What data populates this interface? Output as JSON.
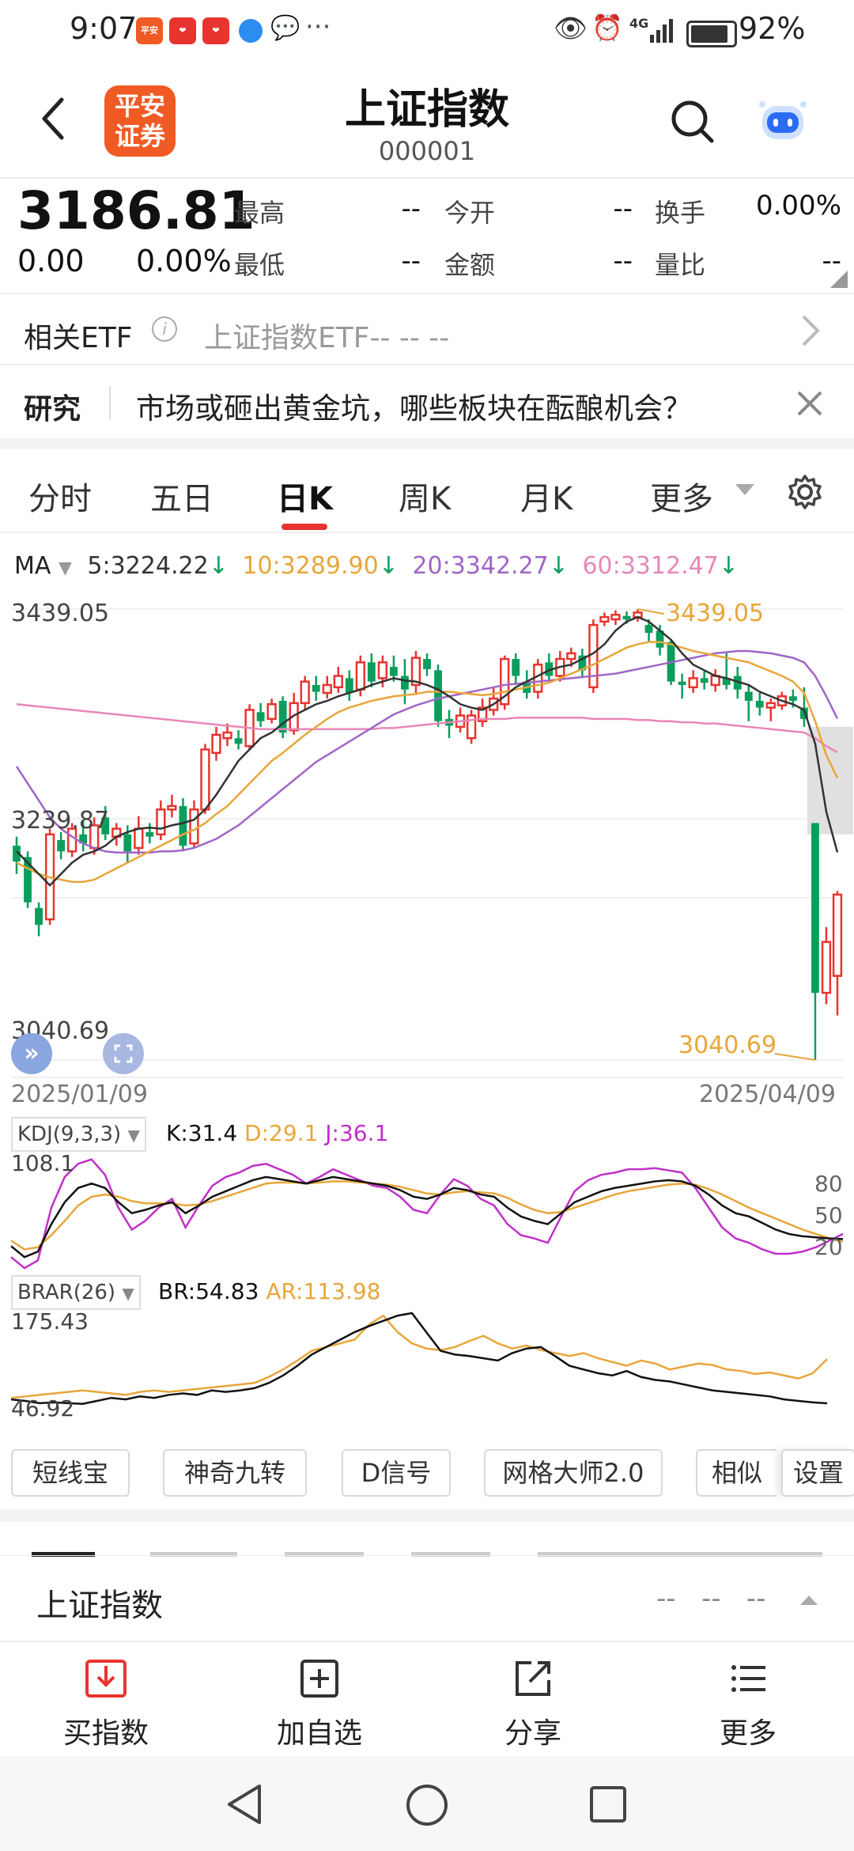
{
  "status_bar": {
    "time": "9:07",
    "network": "4G",
    "battery": "92%",
    "app_icons": [
      {
        "name": "ping-an-app-icon",
        "text": "平安证券",
        "color": "#f05a24"
      },
      {
        "name": "red-app-icon-1",
        "text": "",
        "color": "#e8342f"
      },
      {
        "name": "red-app-icon-2",
        "text": "",
        "color": "#e8342f"
      }
    ],
    "more_dots": "···"
  },
  "header": {
    "title": "上证指数",
    "code": "000001",
    "logo_text": "平安证券",
    "back_icon": "chevron-left-icon",
    "search_icon": "search-icon",
    "assistant_icon": "robot-icon"
  },
  "quote": {
    "price": "3186.81",
    "change": "0.00",
    "change_pct": "0.00%",
    "items": [
      {
        "label": "最高",
        "value": "--"
      },
      {
        "label": "今开",
        "value": "--"
      },
      {
        "label": "换手",
        "value": "0.00%"
      },
      {
        "label": "最低",
        "value": "--"
      },
      {
        "label": "金额",
        "value": "--"
      },
      {
        "label": "量比",
        "value": "--"
      }
    ]
  },
  "etf": {
    "label": "相关ETF",
    "value": "上证指数ETF-- -- --"
  },
  "research": {
    "tag": "研究",
    "text": "市场或砸出黄金坑，哪些板块在酝酿机会？"
  },
  "tabs": [
    {
      "label": "分时"
    },
    {
      "label": "五日"
    },
    {
      "label": "日K",
      "active": true
    },
    {
      "label": "周K"
    },
    {
      "label": "月K"
    },
    {
      "label": "更多"
    }
  ],
  "ma": {
    "label": "MA",
    "items": [
      {
        "text": "5:3224.22",
        "color": "#333333"
      },
      {
        "text": "10:3289.90",
        "color": "#e8a63a"
      },
      {
        "text": "20:3342.27",
        "color": "#a066c8"
      },
      {
        "text": "60:3312.47",
        "color": "#e887b8"
      }
    ]
  },
  "kline_labels": {
    "top": "3439.05",
    "mid": "3239.87",
    "low": "3040.69",
    "high_marker": "3439.05",
    "low_marker": "3040.69",
    "date_start": "2025/01/09",
    "date_end": "2025/04/09"
  },
  "colors": {
    "up": "#e8342f",
    "down": "#0a9e5c",
    "ma5": "#333333",
    "ma10": "#e8a63a",
    "ma20": "#a066c8",
    "ma60": "#e887b8",
    "accent": "#e8342f"
  },
  "kdj": {
    "label": "KDJ(9,3,3)",
    "k": "K:31.4",
    "d": "D:29.1",
    "j": "J:36.1",
    "max": "108.1",
    "levels": [
      "80",
      "50",
      "20"
    ]
  },
  "brar": {
    "label": "BRAR(26)",
    "br": "BR:54.83",
    "ar": "AR:113.98",
    "max": "175.43",
    "min": "46.92"
  },
  "tools": [
    {
      "label": "短线宝"
    },
    {
      "label": "神奇九转"
    },
    {
      "label": "D信号"
    },
    {
      "label": "网格大师2.0"
    },
    {
      "label": "相似"
    },
    {
      "label": "设置"
    }
  ],
  "section": {
    "title": "上证指数",
    "values": "--   --   --"
  },
  "bottom_actions": [
    {
      "label": "买指数",
      "icon": "download-box-icon"
    },
    {
      "label": "加自选",
      "icon": "plus-box-icon"
    },
    {
      "label": "分享",
      "icon": "share-icon"
    },
    {
      "label": "更多",
      "icon": "list-icon"
    }
  ],
  "chart_data": {
    "type": "candlestick",
    "x_range": [
      "2025/01/09",
      "2025/04/09"
    ],
    "ylim": [
      3040.69,
      3439.05
    ],
    "candles": [
      {
        "o": 3230,
        "c": 3216,
        "h": 3238,
        "l": 3205
      },
      {
        "o": 3220,
        "c": 3180,
        "h": 3225,
        "l": 3175
      },
      {
        "o": 3175,
        "c": 3160,
        "h": 3180,
        "l": 3150
      },
      {
        "o": 3165,
        "c": 3240,
        "h": 3245,
        "l": 3160
      },
      {
        "o": 3235,
        "c": 3225,
        "h": 3242,
        "l": 3218
      },
      {
        "o": 3225,
        "c": 3245,
        "h": 3250,
        "l": 3220
      },
      {
        "o": 3240,
        "c": 3232,
        "h": 3252,
        "l": 3225
      },
      {
        "o": 3228,
        "c": 3248,
        "h": 3255,
        "l": 3222
      },
      {
        "o": 3255,
        "c": 3240,
        "h": 3265,
        "l": 3235
      },
      {
        "o": 3238,
        "c": 3245,
        "h": 3250,
        "l": 3230
      },
      {
        "o": 3240,
        "c": 3225,
        "h": 3248,
        "l": 3215
      },
      {
        "o": 3228,
        "c": 3245,
        "h": 3256,
        "l": 3222
      },
      {
        "o": 3242,
        "c": 3238,
        "h": 3250,
        "l": 3232
      },
      {
        "o": 3240,
        "c": 3262,
        "h": 3270,
        "l": 3235
      },
      {
        "o": 3262,
        "c": 3265,
        "h": 3275,
        "l": 3255
      },
      {
        "o": 3265,
        "c": 3230,
        "h": 3272,
        "l": 3225
      },
      {
        "o": 3232,
        "c": 3262,
        "h": 3270,
        "l": 3228
      },
      {
        "o": 3262,
        "c": 3315,
        "h": 3320,
        "l": 3258
      },
      {
        "o": 3312,
        "c": 3328,
        "h": 3335,
        "l": 3305
      },
      {
        "o": 3325,
        "c": 3330,
        "h": 3338,
        "l": 3318
      },
      {
        "o": 3325,
        "c": 3320,
        "h": 3332,
        "l": 3315
      },
      {
        "o": 3318,
        "c": 3350,
        "h": 3355,
        "l": 3315
      },
      {
        "o": 3348,
        "c": 3340,
        "h": 3356,
        "l": 3335
      },
      {
        "o": 3342,
        "c": 3355,
        "h": 3360,
        "l": 3338
      },
      {
        "o": 3358,
        "c": 3330,
        "h": 3362,
        "l": 3325
      },
      {
        "o": 3332,
        "c": 3356,
        "h": 3365,
        "l": 3328
      },
      {
        "o": 3356,
        "c": 3375,
        "h": 3380,
        "l": 3350
      },
      {
        "o": 3372,
        "c": 3366,
        "h": 3380,
        "l": 3358
      },
      {
        "o": 3365,
        "c": 3372,
        "h": 3380,
        "l": 3360
      },
      {
        "o": 3370,
        "c": 3380,
        "h": 3388,
        "l": 3365
      },
      {
        "o": 3378,
        "c": 3365,
        "h": 3385,
        "l": 3358
      },
      {
        "o": 3368,
        "c": 3392,
        "h": 3398,
        "l": 3362
      },
      {
        "o": 3392,
        "c": 3375,
        "h": 3400,
        "l": 3370
      },
      {
        "o": 3378,
        "c": 3392,
        "h": 3398,
        "l": 3370
      },
      {
        "o": 3388,
        "c": 3380,
        "h": 3398,
        "l": 3375
      },
      {
        "o": 3380,
        "c": 3368,
        "h": 3395,
        "l": 3355
      },
      {
        "o": 3372,
        "c": 3396,
        "h": 3402,
        "l": 3365
      },
      {
        "o": 3395,
        "c": 3386,
        "h": 3400,
        "l": 3380
      },
      {
        "o": 3385,
        "c": 3340,
        "h": 3390,
        "l": 3335
      },
      {
        "o": 3342,
        "c": 3336,
        "h": 3350,
        "l": 3325
      },
      {
        "o": 3335,
        "c": 3345,
        "h": 3352,
        "l": 3330
      },
      {
        "o": 3325,
        "c": 3345,
        "h": 3350,
        "l": 3320
      },
      {
        "o": 3340,
        "c": 3352,
        "h": 3360,
        "l": 3335
      },
      {
        "o": 3350,
        "c": 3360,
        "h": 3370,
        "l": 3345
      },
      {
        "o": 3355,
        "c": 3395,
        "h": 3398,
        "l": 3350
      },
      {
        "o": 3395,
        "c": 3380,
        "h": 3400,
        "l": 3372
      },
      {
        "o": 3375,
        "c": 3365,
        "h": 3385,
        "l": 3360
      },
      {
        "o": 3366,
        "c": 3390,
        "h": 3395,
        "l": 3360
      },
      {
        "o": 3392,
        "c": 3380,
        "h": 3400,
        "l": 3375
      },
      {
        "o": 3380,
        "c": 3395,
        "h": 3402,
        "l": 3375
      },
      {
        "o": 3395,
        "c": 3400,
        "h": 3405,
        "l": 3388
      },
      {
        "o": 3398,
        "c": 3385,
        "h": 3404,
        "l": 3378
      },
      {
        "o": 3370,
        "c": 3425,
        "h": 3430,
        "l": 3365
      },
      {
        "o": 3428,
        "c": 3432,
        "h": 3436,
        "l": 3424
      },
      {
        "o": 3430,
        "c": 3434,
        "h": 3438,
        "l": 3425
      },
      {
        "o": 3433,
        "c": 3430,
        "h": 3437,
        "l": 3426
      },
      {
        "o": 3432,
        "c": 3436,
        "h": 3439.05,
        "l": 3428
      },
      {
        "o": 3425,
        "c": 3418,
        "h": 3430,
        "l": 3410
      },
      {
        "o": 3420,
        "c": 3405,
        "h": 3425,
        "l": 3398
      },
      {
        "o": 3410,
        "c": 3375,
        "h": 3412,
        "l": 3372
      },
      {
        "o": 3375,
        "c": 3372,
        "h": 3382,
        "l": 3360
      },
      {
        "o": 3370,
        "c": 3378,
        "h": 3385,
        "l": 3365
      },
      {
        "o": 3378,
        "c": 3374,
        "h": 3384,
        "l": 3368
      },
      {
        "o": 3372,
        "c": 3380,
        "h": 3386,
        "l": 3366
      },
      {
        "o": 3378,
        "c": 3372,
        "h": 3400,
        "l": 3368
      },
      {
        "o": 3380,
        "c": 3368,
        "h": 3388,
        "l": 3360
      },
      {
        "o": 3366,
        "c": 3358,
        "h": 3372,
        "l": 3340
      },
      {
        "o": 3358,
        "c": 3352,
        "h": 3365,
        "l": 3345
      },
      {
        "o": 3352,
        "c": 3356,
        "h": 3360,
        "l": 3340
      },
      {
        "o": 3354,
        "c": 3362,
        "h": 3366,
        "l": 3350
      },
      {
        "o": 3362,
        "c": 3358,
        "h": 3368,
        "l": 3352
      },
      {
        "o": 3352,
        "c": 3342,
        "h": 3370,
        "l": 3335
      },
      {
        "o": 3250,
        "c": 3100,
        "h": 3250,
        "l": 3040.69
      },
      {
        "o": 3100,
        "c": 3145,
        "h": 3158,
        "l": 3090
      },
      {
        "o": 3115,
        "c": 3186.81,
        "h": 3190,
        "l": 3080
      }
    ],
    "ma5": [
      3225,
      3215,
      3205,
      3195,
      3205,
      3215,
      3222,
      3225,
      3230,
      3238,
      3242,
      3245,
      3246,
      3245,
      3248,
      3250,
      3253,
      3262,
      3275,
      3290,
      3305,
      3315,
      3325,
      3330,
      3338,
      3345,
      3350,
      3355,
      3358,
      3362,
      3365,
      3368,
      3372,
      3375,
      3378,
      3376,
      3375,
      3372,
      3368,
      3362,
      3355,
      3352,
      3350,
      3355,
      3362,
      3370,
      3375,
      3380,
      3385,
      3388,
      3390,
      3395,
      3400,
      3408,
      3420,
      3428,
      3432,
      3428,
      3420,
      3412,
      3400,
      3390,
      3385,
      3380,
      3378,
      3375,
      3372,
      3366,
      3362,
      3358,
      3355,
      3350,
      3320,
      3260,
      3224.22
    ],
    "ma10": [
      3215,
      3210,
      3205,
      3202,
      3200,
      3198,
      3198,
      3200,
      3205,
      3210,
      3215,
      3220,
      3225,
      3230,
      3235,
      3240,
      3244,
      3250,
      3258,
      3265,
      3275,
      3285,
      3295,
      3305,
      3312,
      3320,
      3328,
      3335,
      3342,
      3348,
      3352,
      3355,
      3358,
      3360,
      3362,
      3363,
      3364,
      3366,
      3366,
      3366,
      3365,
      3364,
      3363,
      3364,
      3366,
      3368,
      3370,
      3372,
      3374,
      3378,
      3382,
      3386,
      3390,
      3395,
      3400,
      3405,
      3408,
      3410,
      3410,
      3408,
      3405,
      3402,
      3400,
      3398,
      3396,
      3394,
      3392,
      3388,
      3384,
      3380,
      3375,
      3365,
      3340,
      3310,
      3289.9
    ],
    "ma20": [
      3300,
      3285,
      3270,
      3255,
      3245,
      3238,
      3232,
      3228,
      3225,
      3224,
      3224,
      3224,
      3224,
      3225,
      3225,
      3226,
      3228,
      3232,
      3236,
      3242,
      3248,
      3256,
      3264,
      3272,
      3280,
      3288,
      3296,
      3304,
      3310,
      3316,
      3322,
      3328,
      3334,
      3340,
      3346,
      3350,
      3354,
      3357,
      3360,
      3362,
      3364,
      3366,
      3368,
      3370,
      3372,
      3373,
      3374,
      3375,
      3376,
      3377,
      3378,
      3379,
      3380,
      3381,
      3382,
      3384,
      3386,
      3388,
      3390,
      3392,
      3394,
      3396,
      3398,
      3400,
      3401,
      3402,
      3402,
      3401,
      3400,
      3398,
      3396,
      3392,
      3380,
      3362,
      3342.27
    ],
    "ma60": [
      3355,
      3354,
      3353,
      3352,
      3351,
      3350,
      3349,
      3348,
      3347,
      3346,
      3345,
      3344,
      3343,
      3342,
      3341,
      3340,
      3339,
      3338,
      3337,
      3336,
      3335,
      3334,
      3333,
      3333,
      3333,
      3333,
      3333,
      3333,
      3333,
      3333,
      3333,
      3333,
      3333,
      3334,
      3334,
      3335,
      3336,
      3337,
      3338,
      3339,
      3340,
      3341,
      3342,
      3342,
      3342,
      3343,
      3343,
      3343,
      3343,
      3343,
      3343,
      3343,
      3342,
      3342,
      3342,
      3342,
      3341,
      3341,
      3340,
      3340,
      3339,
      3339,
      3338,
      3338,
      3337,
      3336,
      3335,
      3334,
      3333,
      3332,
      3331,
      3330,
      3325,
      3318,
      3312.47
    ],
    "kdj_k": [
      25,
      15,
      20,
      45,
      65,
      78,
      82,
      78,
      65,
      55,
      58,
      62,
      65,
      55,
      62,
      70,
      75,
      80,
      85,
      88,
      86,
      84,
      82,
      85,
      88,
      86,
      84,
      82,
      80,
      76,
      70,
      68,
      72,
      78,
      76,
      72,
      70,
      60,
      52,
      48,
      45,
      55,
      65,
      70,
      75,
      78,
      80,
      82,
      84,
      85,
      84,
      80,
      72,
      62,
      55,
      52,
      46,
      40,
      36,
      34,
      33,
      32,
      31.4
    ],
    "kdj_d": [
      30,
      22,
      24,
      35,
      48,
      62,
      70,
      72,
      70,
      66,
      64,
      64,
      64,
      62,
      63,
      66,
      70,
      74,
      78,
      82,
      83,
      83,
      82,
      83,
      84,
      84,
      83,
      82,
      81,
      79,
      76,
      73,
      72,
      74,
      75,
      74,
      73,
      69,
      63,
      58,
      55,
      56,
      60,
      64,
      68,
      72,
      75,
      77,
      79,
      81,
      82,
      81,
      77,
      72,
      66,
      60,
      55,
      50,
      45,
      40,
      36,
      32,
      29.1
    ],
    "kdj_j": [
      15,
      5,
      12,
      60,
      88,
      100,
      104,
      90,
      60,
      40,
      48,
      60,
      68,
      42,
      62,
      80,
      88,
      92,
      98,
      100,
      95,
      90,
      82,
      88,
      95,
      90,
      85,
      80,
      78,
      70,
      58,
      55,
      72,
      86,
      80,
      68,
      62,
      45,
      35,
      32,
      28,
      52,
      75,
      85,
      90,
      92,
      95,
      95,
      96,
      94,
      92,
      78,
      60,
      42,
      32,
      28,
      22,
      18,
      18,
      20,
      24,
      30,
      36.1
    ],
    "br": [
      60,
      58,
      55,
      56,
      55,
      54,
      58,
      62,
      60,
      64,
      62,
      66,
      68,
      66,
      72,
      70,
      72,
      75,
      82,
      92,
      105,
      120,
      130,
      140,
      150,
      158,
      165,
      172,
      175.43,
      150,
      125,
      120,
      118,
      115,
      112,
      122,
      128,
      130,
      118,
      105,
      100,
      95,
      92,
      98,
      90,
      86,
      84,
      80,
      76,
      72,
      70,
      68,
      66,
      64,
      60,
      58,
      56,
      54.83
    ],
    "ar": [
      62,
      64,
      66,
      68,
      70,
      72,
      70,
      68,
      66,
      70,
      72,
      70,
      72,
      74,
      76,
      78,
      80,
      82,
      90,
      100,
      112,
      125,
      130,
      135,
      140,
      160,
      172,
      150,
      135,
      128,
      126,
      130,
      138,
      145,
      135,
      128,
      132,
      126,
      122,
      118,
      122,
      115,
      110,
      105,
      112,
      108,
      100,
      104,
      108,
      106,
      100,
      98,
      94,
      96,
      92,
      88,
      95,
      113.98
    ]
  }
}
